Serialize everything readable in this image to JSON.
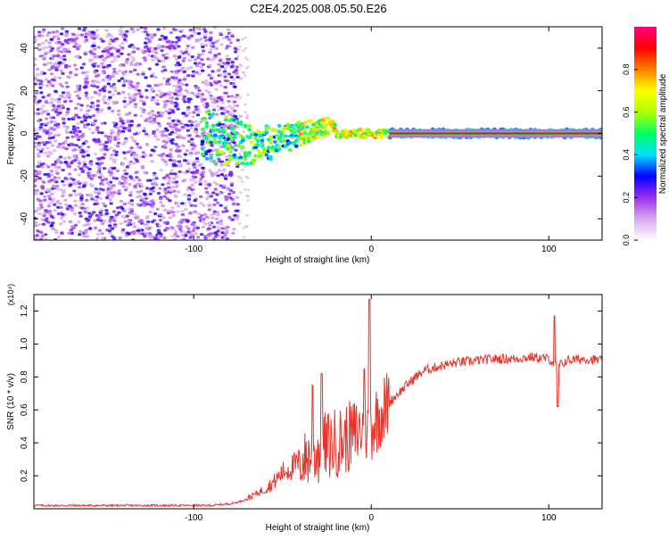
{
  "title": "C2E4.2025.008.05.50.E26",
  "chart_data": [
    {
      "type": "heatmap",
      "title": "C2E4.2025.008.05.50.E26",
      "xlabel": "Height of straight line (km)",
      "ylabel": "Frequency (Hz)",
      "xlim": [
        -190,
        130
      ],
      "ylim": [
        -50,
        50
      ],
      "x_ticks": [
        -100,
        0,
        100
      ],
      "x_tick_labels": [
        "-100",
        "0",
        "100"
      ],
      "y_ticks": [
        -40,
        -20,
        0,
        20,
        40
      ],
      "y_tick_labels": [
        "-40",
        "-20",
        "0",
        "20",
        "40"
      ],
      "colorbar": {
        "label": "Normalized spectral amplitude",
        "range": [
          0,
          1
        ],
        "ticks": [
          0.0,
          0.2,
          0.4,
          0.6,
          0.8
        ],
        "tick_labels": [
          "0.0",
          "0.2",
          "0.4",
          "0.6",
          "0.8"
        ],
        "colors": [
          "#ffffff",
          "#d6a6ee",
          "#9b30ee",
          "#0000ff",
          "#00e0ff",
          "#00ff60",
          "#b0ff00",
          "#ffff00",
          "#ff8000",
          "#ff0000",
          "#ff0080"
        ]
      },
      "grid": false,
      "noise_region_x": [
        -190,
        -75
      ],
      "signal_band_center_hz": 0,
      "signal_band_half_width_hz": 2
    },
    {
      "type": "line",
      "xlabel": "Height of straight line (km)",
      "ylabel": "SNR (10 * v/v)",
      "y_multiplier": "(x10⁴)",
      "xlim": [
        -190,
        130
      ],
      "ylim": [
        0,
        1.3
      ],
      "x_ticks": [
        -100,
        0,
        100
      ],
      "x_tick_labels": [
        "-100",
        "0",
        "100"
      ],
      "y_ticks": [
        0.2,
        0.4,
        0.6,
        0.8,
        1.0,
        1.2
      ],
      "y_tick_labels": [
        "0.2",
        "0.4",
        "0.6",
        "0.8",
        "1.0",
        "1.2"
      ],
      "grid": false,
      "series": [
        {
          "color": "#e8332a",
          "points": [
            [
              -190,
              0.02
            ],
            [
              -170,
              0.02
            ],
            [
              -150,
              0.02
            ],
            [
              -130,
              0.02
            ],
            [
              -110,
              0.02
            ],
            [
              -90,
              0.02
            ],
            [
              -80,
              0.03
            ],
            [
              -75,
              0.04
            ],
            [
              -70,
              0.06
            ],
            [
              -65,
              0.09
            ],
            [
              -60,
              0.12
            ],
            [
              -55,
              0.16
            ],
            [
              -50,
              0.22
            ],
            [
              -45,
              0.25
            ],
            [
              -40,
              0.28
            ],
            [
              -35,
              0.32
            ],
            [
              -30,
              0.35
            ],
            [
              -25,
              0.38
            ],
            [
              -20,
              0.4
            ],
            [
              -15,
              0.42
            ],
            [
              -10,
              0.45
            ],
            [
              -5,
              0.48
            ],
            [
              0,
              0.5
            ],
            [
              5,
              0.58
            ],
            [
              10,
              0.64
            ],
            [
              15,
              0.7
            ],
            [
              20,
              0.75
            ],
            [
              25,
              0.8
            ],
            [
              30,
              0.84
            ],
            [
              40,
              0.87
            ],
            [
              50,
              0.89
            ],
            [
              60,
              0.9
            ],
            [
              70,
              0.91
            ],
            [
              80,
              0.91
            ],
            [
              90,
              0.92
            ],
            [
              100,
              0.91
            ],
            [
              105,
              0.86
            ],
            [
              110,
              0.9
            ],
            [
              120,
              0.91
            ],
            [
              130,
              0.9
            ]
          ],
          "spikes": [
            [
              -1,
              1.27
            ],
            [
              -4,
              0.85
            ],
            [
              -28,
              0.82
            ],
            [
              -33,
              0.75
            ],
            [
              103,
              1.17
            ],
            [
              105,
              0.62
            ]
          ]
        }
      ]
    }
  ]
}
